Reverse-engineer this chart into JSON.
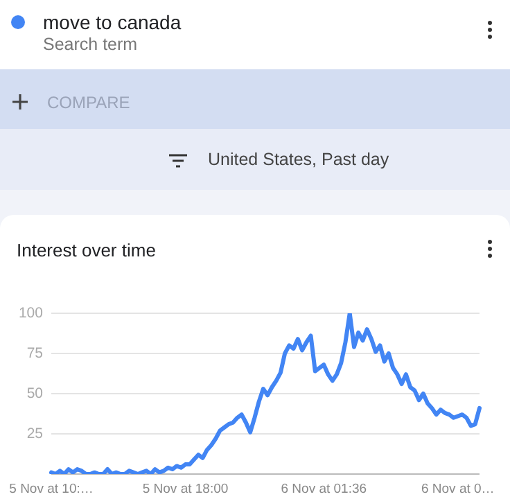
{
  "chart_data": {
    "type": "line",
    "title": "Interest over time",
    "annotations": [
      "Search term",
      "COMPARE",
      "United States, Past day"
    ],
    "categories": [
      "5 Nov at 10:…",
      null,
      null,
      null,
      null,
      null,
      null,
      null,
      null,
      null,
      null,
      null,
      null,
      null,
      null,
      null,
      null,
      null,
      null,
      null,
      null,
      null,
      null,
      null,
      null,
      null,
      null,
      null,
      null,
      null,
      null,
      "5 Nov at 18:00",
      null,
      null,
      null,
      null,
      null,
      null,
      null,
      null,
      null,
      null,
      null,
      null,
      null,
      null,
      null,
      null,
      null,
      null,
      null,
      null,
      null,
      null,
      null,
      null,
      null,
      null,
      null,
      null,
      null,
      null,
      null,
      "6 Nov at 01:36",
      null,
      null,
      null,
      null,
      null,
      null,
      null,
      null,
      null,
      null,
      null,
      null,
      null,
      null,
      null,
      null,
      null,
      null,
      null,
      null,
      null,
      null,
      null,
      null,
      null,
      null,
      null,
      null,
      null,
      null,
      "6 Nov at 0…",
      null,
      null,
      null,
      null,
      null
    ],
    "series": [
      {
        "name": "move to canada",
        "color": "#4285f4",
        "values": [
          1,
          0,
          2,
          0,
          3,
          1,
          3,
          2,
          0,
          0,
          1,
          0,
          0,
          3,
          0,
          1,
          0,
          0,
          2,
          1,
          0,
          1,
          2,
          0,
          3,
          1,
          2,
          4,
          3,
          5,
          4,
          6,
          6,
          9,
          12,
          10,
          15,
          18,
          22,
          27,
          29,
          31,
          32,
          35,
          37,
          32,
          26,
          35,
          45,
          53,
          49,
          54,
          58,
          63,
          75,
          80,
          78,
          84,
          77,
          82,
          86,
          64,
          66,
          68,
          62,
          58,
          62,
          69,
          82,
          100,
          79,
          88,
          83,
          90,
          84,
          76,
          80,
          70,
          75,
          66,
          62,
          56,
          62,
          54,
          52,
          46,
          50,
          44,
          41,
          37,
          40,
          38,
          37,
          35,
          36,
          37,
          35,
          30,
          31,
          41
        ]
      }
    ],
    "ylim": [
      0,
      100
    ],
    "yticks": [
      {
        "value": 0,
        "label": null
      },
      25,
      50,
      75,
      100
    ],
    "grid": "y",
    "legend": "top left",
    "marker": "none",
    "line_style": "solid"
  }
}
